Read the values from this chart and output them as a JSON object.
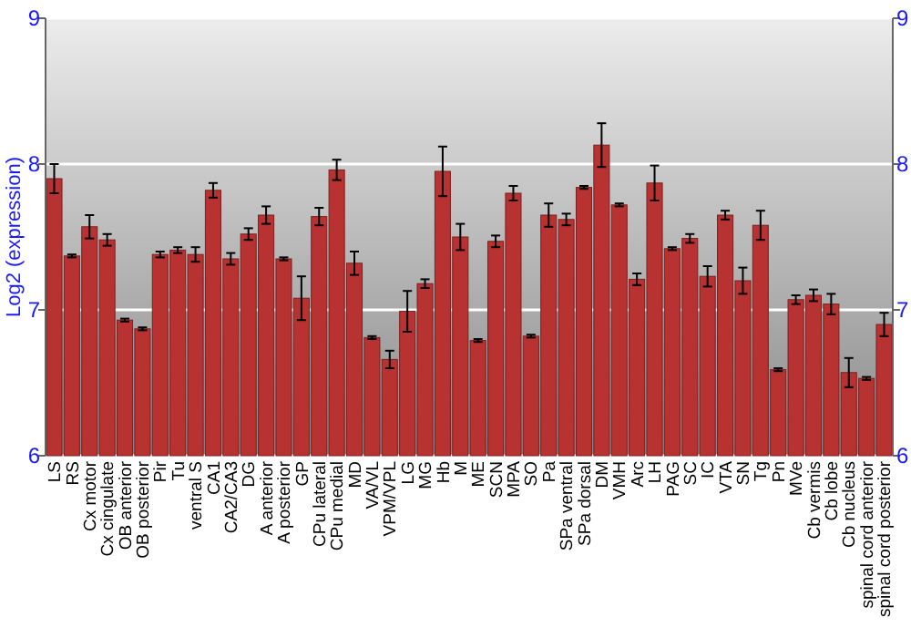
{
  "chart_data": {
    "type": "bar",
    "ylabel": "Log2 (expression)",
    "categories": [
      "LS",
      "RS",
      "Cx motor",
      "Cx cingulate",
      "OB anterior",
      "OB posterior",
      "Pir",
      "Tu",
      "ventral S",
      "CA1",
      "CA2/CA3",
      "DG",
      "A anterior",
      "A posterior",
      "GP",
      "CPu lateral",
      "CPu medial",
      "MD",
      "VA/VL",
      "VPM/VPL",
      "LG",
      "MG",
      "Hb",
      "M",
      "ME",
      "SCN",
      "MPA",
      "SO",
      "Pa",
      "SPa ventral",
      "SPa dorsal",
      "DM",
      "VMH",
      "Arc",
      "LH",
      "PAG",
      "SC",
      "IC",
      "VTA",
      "SN",
      "Tg",
      "Pn",
      "MVe",
      "Cb vermis",
      "Cb lobe",
      "Cb nucleus",
      "spinal cord anterior",
      "spinal cord posterior"
    ],
    "values": [
      7.9,
      7.37,
      7.57,
      7.48,
      6.93,
      6.87,
      7.38,
      7.41,
      7.38,
      7.82,
      7.35,
      7.52,
      7.65,
      7.35,
      7.08,
      7.64,
      7.96,
      7.32,
      6.81,
      6.66,
      6.99,
      7.18,
      7.95,
      7.5,
      6.79,
      7.47,
      7.8,
      6.82,
      7.65,
      7.62,
      7.84,
      8.13,
      7.72,
      7.21,
      7.87,
      7.42,
      7.49,
      7.23,
      7.65,
      7.2,
      7.58,
      6.59,
      7.07,
      7.1,
      7.04,
      6.57,
      6.53,
      6.9
    ],
    "errors": [
      0.1,
      0.01,
      0.08,
      0.04,
      0.01,
      0.01,
      0.02,
      0.02,
      0.05,
      0.05,
      0.04,
      0.04,
      0.06,
      0.01,
      0.15,
      0.06,
      0.07,
      0.08,
      0.01,
      0.06,
      0.14,
      0.03,
      0.17,
      0.09,
      0.01,
      0.04,
      0.05,
      0.01,
      0.08,
      0.04,
      0.01,
      0.15,
      0.01,
      0.04,
      0.12,
      0.01,
      0.03,
      0.07,
      0.03,
      0.09,
      0.1,
      0.01,
      0.03,
      0.04,
      0.07,
      0.1,
      0.01,
      0.08
    ],
    "color": "#b83232",
    "ylim": [
      6,
      9
    ],
    "yticks": [
      6,
      7,
      8,
      9
    ],
    "y2lim": [
      6,
      9
    ],
    "y2ticks": [
      6,
      7,
      8,
      9
    ],
    "grid": "y"
  }
}
